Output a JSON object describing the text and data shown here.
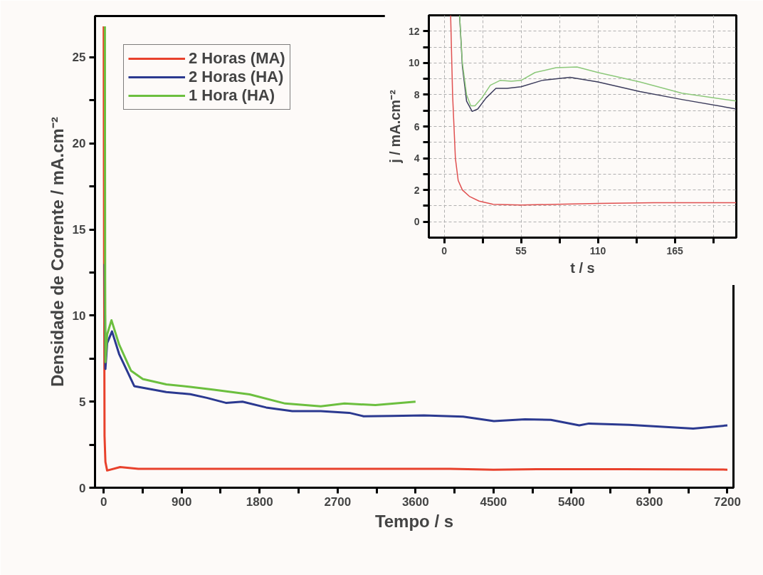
{
  "chart_data": [
    {
      "type": "line",
      "xlabel": "Tempo / s",
      "ylabel": "Densidade de Corrente / mA.cm⁻²",
      "xlim": [
        -100,
        7270
      ],
      "ylim": [
        0,
        27.4
      ],
      "xticks": [
        0,
        {
          "value": 450,
          "label": null
        },
        900,
        {
          "value": 1350,
          "label": null
        },
        1800,
        {
          "value": 2250,
          "label": null
        },
        2700,
        {
          "value": 3150,
          "label": null
        },
        3600,
        {
          "value": 4050,
          "label": null
        },
        4500,
        {
          "value": 4950,
          "label": null
        },
        5400,
        {
          "value": 5850,
          "label": null
        },
        6300,
        {
          "value": 6750,
          "label": null
        },
        7200
      ],
      "yticks": [
        0,
        {
          "value": 2.5,
          "label": null
        },
        5,
        {
          "value": 7.5,
          "label": null
        },
        10,
        {
          "value": 12.5,
          "label": null
        },
        15,
        {
          "value": 17.5,
          "label": null
        },
        20,
        {
          "value": 22.5,
          "label": null
        },
        25
      ],
      "legend": "top left",
      "grid": false,
      "line_style": "solid",
      "series": [
        {
          "name": "2 Horas (MA)",
          "color": "#e8412c",
          "x": [
            0,
            5,
            10,
            20,
            40,
            190,
            400,
            1000,
            2000,
            3000,
            4000,
            4500,
            5000,
            6000,
            7200
          ],
          "values": [
            26.8,
            13,
            3,
            1.5,
            1.0,
            1.2,
            1.1,
            1.1,
            1.1,
            1.1,
            1.1,
            1.05,
            1.08,
            1.08,
            1.05
          ]
        },
        {
          "name": "2 Horas (HA)",
          "color": "#2b3990",
          "x": [
            11,
            20,
            40,
            96,
            178,
            353,
            723,
            1000,
            1191,
            1411,
            1602,
            1876,
            2177,
            2506,
            2835,
            3000,
            3328,
            3698,
            4150,
            4505,
            4862,
            5162,
            5490,
            5601,
            6066,
            6805,
            7200
          ],
          "values": [
            13,
            6.9,
            8.4,
            9.08,
            7.77,
            5.9,
            5.56,
            5.43,
            5.22,
            4.93,
            5.0,
            4.66,
            4.45,
            4.45,
            4.35,
            4.15,
            4.17,
            4.2,
            4.13,
            3.87,
            3.97,
            3.94,
            3.62,
            3.73,
            3.65,
            3.44,
            3.62
          ]
        },
        {
          "name": "1 Hora (HA)",
          "color": "#6cbf3f",
          "x": [
            14,
            17,
            20,
            40,
            90,
            178,
            315,
            452,
            723,
            1000,
            1273,
            1684,
            2095,
            2506,
            2780,
            3136,
            3600
          ],
          "values": [
            26.8,
            12,
            7.3,
            8.9,
            9.73,
            8.32,
            6.8,
            6.31,
            6.0,
            5.86,
            5.69,
            5.42,
            4.89,
            4.73,
            4.89,
            4.8,
            5.0
          ]
        }
      ]
    },
    {
      "type": "line",
      "xlabel": "t / s",
      "ylabel": "j / mA.cm⁻²",
      "xlim": [
        -11,
        209
      ],
      "ylim": [
        -1,
        13
      ],
      "xticks": [
        0,
        {
          "value": 27.5,
          "label": null
        },
        55,
        {
          "value": 82.5,
          "label": null
        },
        110,
        {
          "value": 137.5,
          "label": null
        },
        165,
        {
          "value": 192.5,
          "label": null
        }
      ],
      "yticks": [
        0,
        {
          "value": 1,
          "label": null
        },
        2,
        {
          "value": 3,
          "label": null
        },
        4,
        {
          "value": 5,
          "label": null
        },
        6,
        {
          "value": 7,
          "label": null
        },
        8,
        {
          "value": 9,
          "label": null
        },
        10,
        {
          "value": 11,
          "label": null
        },
        12
      ],
      "legend": false,
      "grid": true,
      "line_style": "solid",
      "series": [
        {
          "color": "#e05050",
          "x": [
            4.6,
            6,
            8,
            10,
            13,
            18,
            25,
            35,
            55,
            80,
            110,
            150,
            209
          ],
          "values": [
            13,
            8,
            4,
            2.6,
            2,
            1.6,
            1.3,
            1.1,
            1.05,
            1.1,
            1.15,
            1.2,
            1.2
          ]
        },
        {
          "color": "#3c3c5c",
          "x": [
            11,
            13,
            16,
            20,
            24,
            30,
            37,
            45,
            55,
            70,
            90,
            110,
            140,
            170,
            209
          ],
          "values": [
            13,
            9.8,
            7.6,
            6.95,
            7.1,
            7.8,
            8.4,
            8.4,
            8.5,
            8.9,
            9.1,
            8.8,
            8.2,
            7.7,
            7.1
          ]
        },
        {
          "color": "#8cc87a",
          "x": [
            11,
            13,
            16,
            19,
            22,
            27,
            33,
            40,
            48,
            55,
            65,
            80,
            95,
            110,
            140,
            170,
            209
          ],
          "values": [
            13,
            10,
            8,
            7.3,
            7.3,
            7.8,
            8.6,
            8.9,
            8.85,
            8.9,
            9.4,
            9.7,
            9.75,
            9.4,
            8.8,
            8.1,
            7.6
          ]
        }
      ]
    }
  ]
}
